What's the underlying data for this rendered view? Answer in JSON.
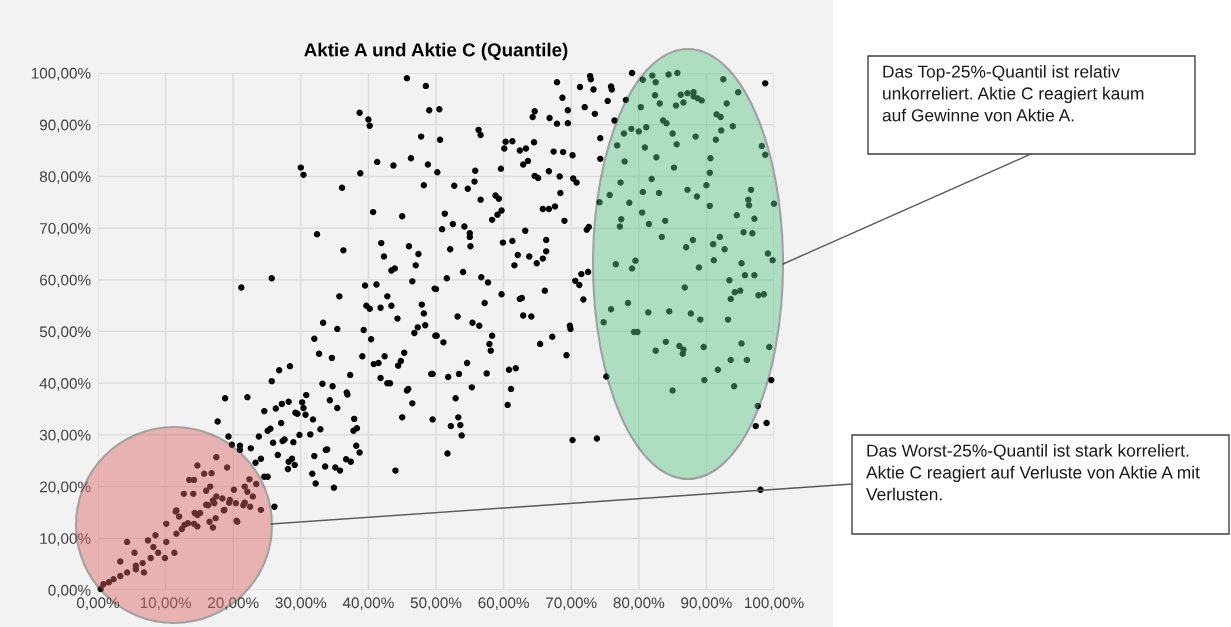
{
  "chart_data": {
    "type": "scatter",
    "title": "Aktie A und Aktie C (Quantile)",
    "xlim": [
      0,
      100
    ],
    "ylim": [
      0,
      100
    ],
    "xticks": [
      {
        "value": 0,
        "label": "0,00%"
      },
      {
        "value": 10,
        "label": "10,00%"
      },
      {
        "value": 20,
        "label": "20,00%"
      },
      {
        "value": 30,
        "label": "30,00%"
      },
      {
        "value": 40,
        "label": "40,00%"
      },
      {
        "value": 50,
        "label": "50,00%"
      },
      {
        "value": 60,
        "label": "60,00%"
      },
      {
        "value": 70,
        "label": "70,00%"
      },
      {
        "value": 80,
        "label": "80,00%"
      },
      {
        "value": 90,
        "label": "90,00%"
      },
      {
        "value": 100,
        "label": "100,00%"
      }
    ],
    "yticks": [
      {
        "value": 0,
        "label": "0,00%"
      },
      {
        "value": 10,
        "label": "10,00%"
      },
      {
        "value": 20,
        "label": "20,00%"
      },
      {
        "value": 30,
        "label": "30,00%"
      },
      {
        "value": 40,
        "label": "40,00%"
      },
      {
        "value": 50,
        "label": "50,00%"
      },
      {
        "value": 60,
        "label": "60,00%"
      },
      {
        "value": 70,
        "label": "70,00%"
      },
      {
        "value": 80,
        "label": "80,00%"
      },
      {
        "value": 90,
        "label": "90,00%"
      },
      {
        "value": 100,
        "label": "100,00%"
      }
    ],
    "grid": true,
    "marker": "circle",
    "legend": false,
    "annotations": [
      "Das Top-25%-Quantil ist relativ unkorreliert. Aktie C reagiert kaum auf Gewinne von Aktie A.",
      "Das Worst-25%-Quantil ist stark korreliert. Aktie C reagiert auf Verluste von Aktie A mit Verlusten."
    ],
    "series": [
      {
        "color": "#000000",
        "x": [
          45.7,
          48.5,
          49.0,
          38.7,
          40.0,
          40.2,
          47.8,
          30.0,
          30.4,
          41.3,
          43.7,
          46.3,
          48.8,
          38.8,
          36.1,
          48.2,
          40.7,
          45.0,
          32.4,
          36.3,
          41.9,
          42.3,
          43.4,
          43.9,
          46.0,
          47.4,
          47.0,
          46.5,
          25.7,
          21.2,
          39.5,
          41.2,
          49.8,
          35.7,
          42.8,
          39.7,
          40.2,
          41.8,
          43.4,
          44.3,
          47.9,
          48.2,
          48.4,
          47.3,
          46.8,
          33.3,
          35.4,
          39.3,
          40.4,
          32.0,
          49.9,
          32.7,
          34.6,
          39.1,
          40.8,
          41.5,
          42.4,
          45.3,
          44.8,
          44.4,
          37.3,
          49.3,
          41.8,
          42.8,
          43.2,
          45.7,
          45.9,
          46.5,
          45.0,
          49.5,
          44.0,
          25.7,
          26.8,
          28.4,
          33.2,
          34.7,
          36.8,
          36.9,
          34.3,
          35.4,
          37.9,
          37.8,
          38.3,
          38.2,
          38.7,
          36.7,
          37.4,
          33.7,
          33.9,
          33.6,
          35.1,
          35.8,
          34.9,
          32.0,
          32.9,
          31.4,
          31.7,
          32.2,
          30.8,
          30.2,
          30.4,
          29.2,
          29.5,
          30.7,
          31.8,
          29.8,
          28.2,
          27.2,
          26.3,
          24.6,
          27.1,
          25.1,
          25.5,
          23.8,
          22.6,
          25.9,
          27.3,
          27.6,
          28.9,
          26.6,
          28.7,
          29.1,
          28.2,
          28.1,
          24.1,
          23.3,
          24.6,
          25.1,
          26.1,
          18.8,
          22.1,
          17.7,
          19.3,
          19.8,
          21.0,
          21.0,
          17.5,
          14.7,
          19.1,
          15.7,
          16.8,
          13.5,
          14.2,
          16.6,
          12.7,
          14.1,
          16.0,
          22.4,
          23.4,
          20.1,
          21.7,
          22.9,
          17.5,
          18.4,
          19.5,
          20.4,
          21.5,
          22.5,
          24.1,
          16.0,
          17.2,
          11.5,
          14.7,
          15.1,
          18.7,
          10.1,
          12.8,
          14.2,
          16.5,
          17.4,
          20.6,
          0.4,
          0.8,
          1.6,
          2.3,
          3.3,
          4.3,
          5.6,
          6.6,
          4.3,
          3.3,
          7.8,
          8.9,
          6.8,
          5.6,
          9.9,
          8.2,
          10.1,
          11.6,
          11.3,
          12.4,
          13.3,
          12.0,
          11.6,
          14.3,
          14.7,
          16.3,
          17.0,
          17.0,
          18.6,
          19.4,
          20.5,
          21.7,
          22.1,
          7.4,
          8.5,
          5.4,
          50.5,
          50.6,
          50.2,
          67.9,
          72.8,
          72.9,
          71.3,
          73.3,
          75.9,
          76.0,
          68.7,
          75.4,
          72.0,
          69.5,
          64.6,
          64.3,
          66.8,
          67.9,
          69.5,
          73.5,
          76.4,
          56.3,
          56.6,
          60.3,
          61.3,
          60.1,
          62.4,
          63.3,
          64.5,
          67.4,
          68.8,
          70.2,
          74.3,
          74.3,
          62.9,
          63.6,
          59.6,
          55.8,
          55.7,
          54.7,
          52.7,
          56.6,
          58.8,
          59.3,
          64.6,
          65.1,
          66.7,
          68.3,
          70.3,
          70.8,
          68.4,
          65.8,
          66.7,
          67.6,
          69.0,
          59.7,
          59.1,
          58.3,
          51.3,
          52.5,
          54.2,
          50.9,
          55.0,
          55.0,
          55.1,
          52.1,
          63.2,
          59.9,
          61.3,
          66.3,
          66.3,
          62.1,
          63.8,
          64.9,
          65.8,
          61.6,
          72.3,
          72.6,
          71.5,
          72.5,
          70.6,
          71.2,
          71.8,
          66.1,
          59.7,
          62.4,
          62.7,
          62.9,
          64.1,
          54.0,
          51.6,
          56.7,
          57.7,
          57.2,
          53.2,
          55.4,
          56.4,
          50.0,
          51.1,
          50.1,
          58.3,
          57.9,
          58.1,
          54.6,
          53.4,
          51.8,
          49.5,
          55.3,
          57.5,
          60.8,
          61.8,
          61.1,
          60.6,
          52.9,
          53.3,
          53.6,
          53.8,
          52.2,
          51.7,
          65.4,
          67.2,
          69.8,
          69.9,
          69.3,
          70.2,
          73.8,
          75.2,
          79.0,
          80.6,
          82.5,
          82.0,
          84.4,
          85.7,
          92.5,
          98.7,
          82.4,
          80.3,
          83.1,
          85.5,
          86.2,
          87.2,
          88.1,
          86.6,
          88.1,
          88.7,
          89.3,
          93.0,
          94.7,
          91.5,
          92.1,
          83.6,
          84.1,
          81.1,
          80.0,
          78.9,
          77.8,
          85.0,
          92.2,
          93.9,
          88.4,
          91.4,
          76.8,
          80.9,
          85.6,
          82.6,
          77.9,
          85.2,
          90.6,
          90.5,
          98.2,
          98.7,
          90.0,
          81.9,
          77.3,
          75.7,
          74.2,
          80.6,
          83.0,
          78.6,
          87.2,
          88.6,
          90.5,
          96.6,
          96.2,
          96.3,
          100.0,
          80.5,
          94.5,
          77.4,
          77.2,
          81.5,
          83.9,
          97.1,
          83.4,
          88.0,
          87.0,
          91.0,
          92.0,
          92.7,
          95.5,
          96.8,
          99.1,
          99.8,
          76.6,
          79.5,
          79.0,
          88.9,
          91.1,
          95.2,
          95.7,
          97.1,
          86.8,
          93.4,
          94.2,
          95.0,
          93.6,
          97.7,
          98.5,
          75.9,
          78.4,
          81.4,
          84.5,
          87.7,
          89.1,
          93.2,
          74.8,
          79.3,
          79.8,
          84.0,
          82.5,
          86.0,
          86.6,
          86.5,
          89.6,
          95.2,
          99.3,
          93.6,
          96.0,
          91.7,
          89.7,
          94.1,
          85.0,
          99.6,
          97.6,
          97.3,
          98.9,
          98.0,
          78.1
        ],
        "values": [
          99.0,
          97.5,
          92.8,
          92.3,
          91.0,
          89.8,
          87.7,
          81.7,
          80.3,
          82.8,
          82.1,
          83.5,
          82.3,
          80.6,
          77.8,
          78.3,
          73.1,
          72.3,
          68.8,
          65.7,
          67.1,
          64.5,
          61.8,
          62.2,
          66.5,
          65.0,
          62.8,
          59.7,
          60.3,
          58.5,
          58.9,
          59.1,
          58.3,
          56.8,
          56.8,
          55.0,
          54.4,
          54.6,
          55.0,
          52.5,
          55.2,
          53.5,
          51.2,
          50.8,
          49.7,
          51.7,
          50.5,
          50.3,
          48.5,
          48.6,
          49.2,
          45.7,
          44.9,
          45.2,
          43.7,
          43.9,
          45.2,
          45.9,
          44.3,
          43.4,
          41.6,
          41.8,
          41.0,
          40.0,
          40.0,
          38.6,
          38.9,
          36.1,
          33.4,
          33.0,
          23.1,
          40.4,
          42.5,
          43.3,
          39.9,
          39.4,
          38.2,
          37.8,
          36.7,
          35.2,
          33.1,
          30.8,
          31.3,
          27.9,
          26.6,
          25.3,
          24.8,
          27.1,
          27.2,
          23.9,
          23.7,
          23.1,
          19.8,
          25.9,
          31.1,
          30.1,
          22.5,
          20.6,
          37.7,
          36.3,
          35.2,
          34.3,
          34.1,
          33.9,
          33.0,
          30.0,
          36.4,
          36.0,
          35.1,
          34.6,
          32.3,
          30.8,
          31.2,
          29.7,
          27.4,
          28.5,
          28.8,
          29.1,
          28.6,
          26.1,
          25.4,
          24.2,
          24.8,
          23.4,
          25.4,
          24.6,
          21.9,
          21.9,
          16.1,
          37.1,
          37.3,
          32.6,
          29.7,
          28.1,
          27.9,
          27.1,
          25.7,
          24.1,
          23.7,
          22.5,
          22.6,
          21.3,
          21.3,
          20.0,
          18.6,
          18.6,
          19.2,
          21.4,
          20.5,
          19.4,
          20.0,
          18.1,
          18.1,
          17.7,
          17.4,
          16.8,
          16.4,
          16.1,
          15.5,
          16.5,
          16.8,
          15.2,
          14.5,
          14.9,
          15.5,
          12.8,
          12.6,
          12.8,
          13.2,
          13.9,
          13.2,
          0.2,
          1.1,
          1.5,
          2.1,
          2.7,
          3.4,
          4.0,
          5.2,
          9.3,
          5.5,
          6.2,
          7.2,
          3.4,
          4.7,
          6.2,
          8.3,
          9.3,
          10.9,
          7.2,
          11.8,
          12.9,
          14.2,
          15.4,
          14.9,
          12.3,
          16.4,
          17.3,
          12.1,
          15.4,
          16.9,
          13.4,
          16.9,
          19.0,
          9.6,
          10.6,
          7.2,
          93.0,
          87.1,
          80.8,
          98.2,
          99.4,
          98.8,
          97.3,
          96.8,
          97.4,
          96.8,
          95.2,
          94.6,
          93.4,
          92.8,
          92.6,
          91.5,
          91.3,
          90.2,
          90.3,
          92.1,
          90.8,
          89.0,
          88.0,
          86.7,
          86.8,
          85.4,
          85.0,
          85.4,
          86.6,
          84.8,
          84.7,
          84.1,
          87.4,
          83.4,
          82.3,
          83.0,
          81.5,
          81.1,
          79.0,
          77.6,
          78.2,
          75.5,
          76.3,
          75.7,
          80.1,
          79.7,
          81.0,
          80.0,
          79.6,
          78.8,
          76.8,
          73.7,
          73.7,
          74.2,
          71.4,
          73.4,
          72.6,
          71.6,
          72.8,
          70.8,
          70.3,
          69.8,
          69.0,
          68.3,
          66.5,
          65.9,
          69.5,
          67.2,
          67.5,
          67.7,
          65.5,
          64.8,
          64.5,
          63.2,
          64.1,
          62.8,
          69.7,
          70.2,
          61.1,
          61.5,
          59.8,
          59.0,
          56.2,
          57.9,
          57.2,
          56.3,
          56.5,
          53.1,
          52.9,
          61.5,
          60.3,
          60.5,
          59.5,
          55.5,
          52.9,
          51.7,
          51.1,
          58.2,
          47.9,
          49.2,
          49.2,
          47.6,
          46.3,
          43.9,
          41.8,
          41.2,
          41.8,
          39.2,
          41.9,
          42.6,
          42.9,
          38.9,
          35.8,
          37.1,
          33.4,
          31.9,
          29.9,
          31.7,
          26.4,
          47.6,
          49.0,
          51.1,
          50.5,
          45.4,
          29.0,
          29.3,
          41.3,
          100.0,
          98.7,
          98.2,
          99.5,
          99.7,
          100.0,
          98.8,
          98.0,
          95.7,
          93.4,
          94.1,
          93.7,
          95.8,
          96.1,
          96.3,
          94.3,
          95.5,
          95.1,
          94.7,
          94.1,
          96.3,
          92.0,
          91.5,
          90.8,
          90.3,
          89.5,
          88.7,
          89.2,
          88.3,
          88.3,
          88.9,
          89.7,
          87.7,
          87.1,
          86.0,
          85.6,
          86.2,
          83.7,
          82.9,
          81.7,
          83.5,
          80.7,
          85.9,
          84.2,
          78.3,
          79.5,
          78.8,
          76.4,
          75.0,
          77.0,
          76.8,
          74.9,
          77.4,
          76.1,
          74.3,
          77.4,
          75.5,
          74.4,
          74.7,
          73.0,
          72.5,
          71.7,
          70.3,
          70.8,
          71.4,
          71.8,
          68.3,
          67.7,
          66.3,
          66.9,
          68.3,
          65.9,
          69.2,
          69.0,
          65.1,
          63.8,
          63.0,
          63.7,
          62.2,
          62.4,
          63.8,
          63.2,
          60.9,
          60.9,
          58.5,
          59.9,
          57.6,
          57.9,
          56.3,
          57.0,
          57.2,
          54.3,
          55.5,
          53.7,
          53.9,
          53.5,
          52.3,
          52.3,
          51.8,
          49.9,
          49.9,
          48.0,
          46.3,
          47.2,
          46.5,
          45.7,
          47.0,
          47.7,
          47.0,
          44.5,
          44.5,
          42.6,
          40.6,
          39.4,
          38.6,
          40.6,
          35.6,
          31.7,
          32.3,
          19.4,
          94.8
        ]
      }
    ]
  }
}
